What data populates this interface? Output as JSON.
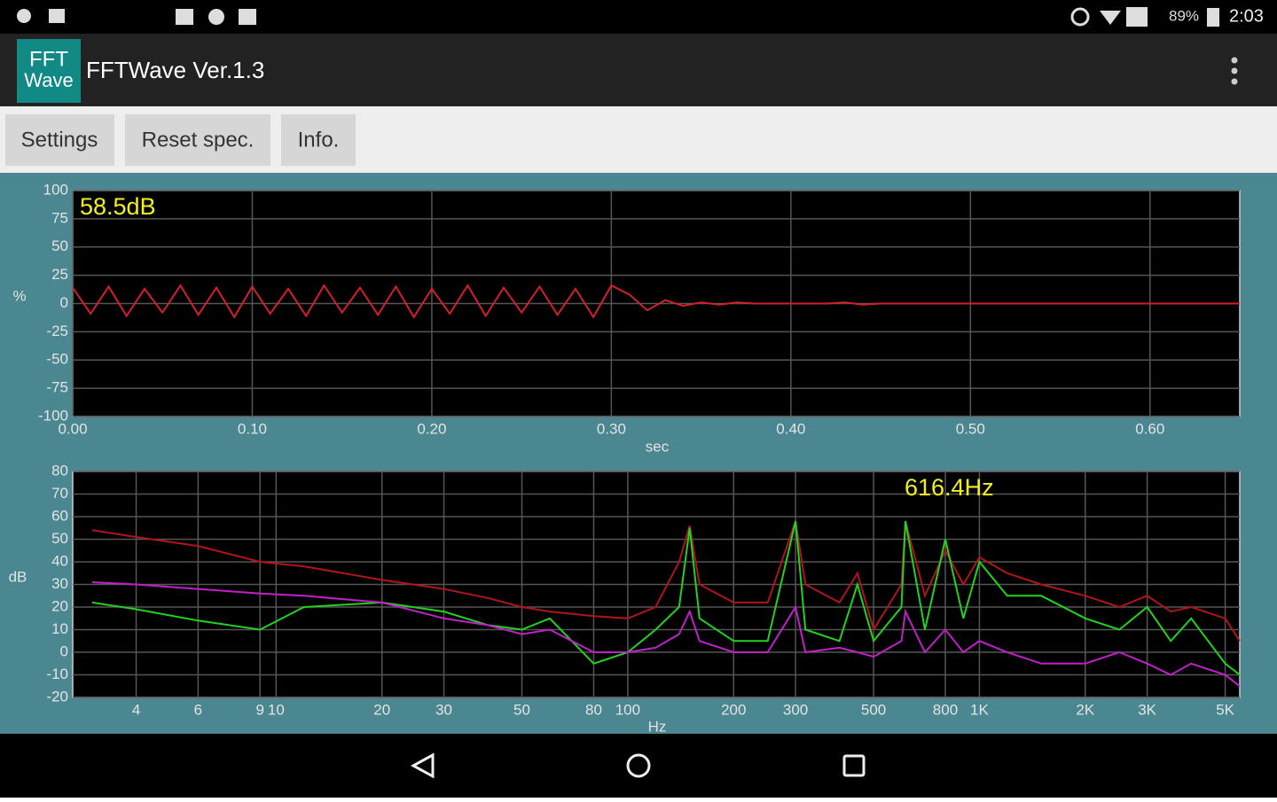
{
  "status_bar": {
    "battery": "89%",
    "time": "2:03"
  },
  "app_bar": {
    "icon": [
      "FFT",
      "Wave"
    ],
    "title": "FFTWave Ver.1.3"
  },
  "buttons": [
    "Settings",
    "Reset spec.",
    "Info."
  ],
  "chart_data": [
    {
      "type": "line",
      "annotation": "58.5dB",
      "ylabel": "%",
      "xlabel": "sec",
      "xlim": [
        0,
        0.65
      ],
      "ylim": [
        -100,
        100
      ],
      "log_x": false,
      "grid": true,
      "xticks": [
        {
          "value": 0,
          "label": "0.00"
        },
        {
          "value": 0.1,
          "label": "0.10"
        },
        {
          "value": 0.2,
          "label": "0.20"
        },
        {
          "value": 0.3,
          "label": "0.30"
        },
        {
          "value": 0.4,
          "label": "0.40"
        },
        {
          "value": 0.5,
          "label": "0.50"
        },
        {
          "value": 0.6,
          "label": "0.60"
        }
      ],
      "yticks": [
        100,
        75,
        50,
        25,
        0,
        -25,
        -50,
        -75,
        -100
      ],
      "x": [
        0,
        0.01,
        0.02,
        0.03,
        0.04,
        0.05,
        0.06,
        0.07,
        0.08,
        0.09,
        0.1,
        0.11,
        0.12,
        0.13,
        0.14,
        0.15,
        0.16,
        0.17,
        0.18,
        0.19,
        0.2,
        0.21,
        0.22,
        0.23,
        0.24,
        0.25,
        0.26,
        0.27,
        0.28,
        0.29,
        0.3,
        0.31,
        0.32,
        0.33,
        0.34,
        0.35,
        0.36,
        0.37,
        0.38,
        0.39,
        0.4,
        0.41,
        0.42,
        0.43,
        0.44,
        0.45,
        0.46,
        0.47,
        0.48,
        0.49,
        0.5,
        0.51,
        0.52,
        0.53,
        0.54,
        0.55,
        0.56,
        0.57,
        0.58,
        0.59,
        0.6,
        0.61,
        0.62,
        0.63,
        0.64,
        0.65
      ],
      "series": [
        {
          "color": "#d3202a",
          "values": [
            14,
            -9,
            15,
            -11,
            13,
            -8,
            16,
            -10,
            14,
            -12,
            15,
            -9,
            13,
            -11,
            16,
            -8,
            14,
            -10,
            15,
            -12,
            13,
            -9,
            16,
            -11,
            14,
            -8,
            15,
            -10,
            13,
            -12,
            16,
            8,
            -6,
            3,
            -2,
            1,
            -1,
            1,
            0,
            0,
            0,
            0,
            0,
            1,
            -1,
            0,
            0,
            0,
            0,
            0,
            0,
            0,
            0,
            0,
            0,
            0,
            0,
            0,
            0,
            0,
            0,
            0,
            0,
            0,
            0,
            0
          ]
        }
      ]
    },
    {
      "type": "line",
      "annotation": "616.4Hz",
      "ylabel": "dB",
      "xlabel": "Hz",
      "xlim": [
        2.64,
        5500
      ],
      "ylim": [
        -20,
        80
      ],
      "log_x": true,
      "grid": true,
      "xticks": [
        4,
        6,
        9,
        10,
        20,
        30,
        50,
        80,
        100,
        200,
        300,
        500,
        800,
        {
          "value": 1000,
          "label": "1K"
        },
        {
          "value": 2000,
          "label": "2K"
        },
        {
          "value": 3000,
          "label": "3K"
        },
        {
          "value": 5000,
          "label": "5K"
        }
      ],
      "yticks": [
        80,
        70,
        60,
        50,
        40,
        30,
        20,
        10,
        0,
        -10,
        -20
      ],
      "x": [
        3,
        4,
        6,
        9,
        12,
        20,
        30,
        40,
        50,
        60,
        80,
        100,
        120,
        140,
        150,
        160,
        200,
        250,
        300,
        320,
        400,
        450,
        500,
        600,
        616,
        700,
        800,
        900,
        1000,
        1200,
        1500,
        2000,
        2500,
        3000,
        3500,
        4000,
        5000,
        5500
      ],
      "series": [
        {
          "color": "#b0141c",
          "values": [
            54,
            51,
            47,
            40,
            38,
            32,
            28,
            24,
            20,
            18,
            16,
            15,
            20,
            40,
            56,
            30,
            22,
            22,
            58,
            30,
            22,
            35,
            10,
            30,
            58,
            25,
            45,
            30,
            42,
            35,
            30,
            25,
            20,
            25,
            18,
            20,
            15,
            5
          ]
        },
        {
          "color": "#22d21e",
          "values": [
            22,
            19,
            14,
            10,
            20,
            22,
            18,
            12,
            10,
            15,
            -5,
            0,
            10,
            20,
            55,
            15,
            5,
            5,
            58,
            10,
            5,
            30,
            5,
            20,
            58,
            10,
            50,
            15,
            40,
            25,
            25,
            15,
            10,
            20,
            5,
            15,
            -5,
            -10
          ]
        },
        {
          "color": "#c020c8",
          "values": [
            31,
            30,
            28,
            26,
            25,
            22,
            15,
            12,
            8,
            10,
            0,
            0,
            2,
            8,
            18,
            5,
            0,
            0,
            20,
            0,
            2,
            0,
            -2,
            5,
            18,
            0,
            10,
            0,
            5,
            0,
            -5,
            -5,
            0,
            -5,
            -10,
            -5,
            -10,
            -15
          ]
        }
      ]
    }
  ]
}
